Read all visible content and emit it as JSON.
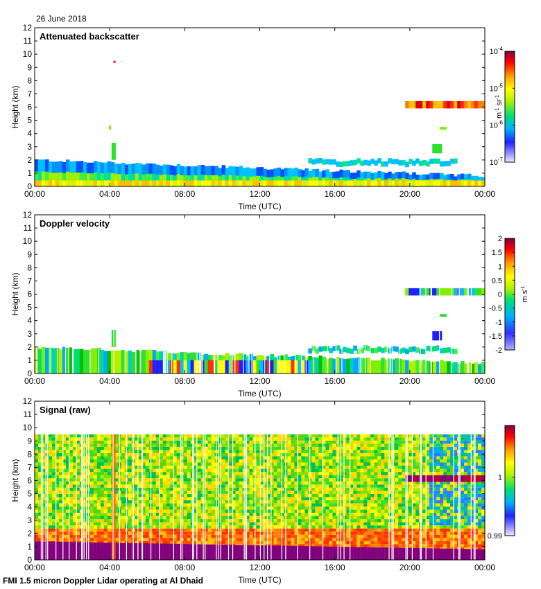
{
  "date_label": "26 June 2018",
  "footer": "FMI 1.5 micron Doppler Lidar operating at Al Dhaid",
  "chart_data": [
    {
      "type": "heatmap",
      "title": "Attenuated backscatter",
      "xlabel": "Time (UTC)",
      "ylabel": "Height (km)",
      "x_ticks": [
        "00:00",
        "04:00",
        "08:00",
        "12:00",
        "16:00",
        "20:00",
        "00:00"
      ],
      "y_ticks": [
        "0",
        "1",
        "2",
        "3",
        "4",
        "5",
        "6",
        "7",
        "8",
        "9",
        "10",
        "11",
        "12"
      ],
      "ylim": [
        0,
        12
      ],
      "xlim_hours": [
        0,
        24
      ],
      "colorbar": {
        "unit_html": "m<tspan dy='-4' font-size='7'>-1</tspan><tspan dy='4'> sr</tspan><tspan dy='-4' font-size='7'>-1</tspan>",
        "unit": "m-1 sr-1",
        "scale": "log",
        "range": [
          1e-07,
          0.0001
        ],
        "tick_labels": [
          {
            "base": "10",
            "exp": "-4"
          },
          {
            "base": "10",
            "exp": "-5"
          },
          {
            "base": "10",
            "exp": "-6"
          },
          {
            "base": "10",
            "exp": "-7"
          }
        ]
      },
      "features": [
        {
          "name": "boundary-layer",
          "t_start": 0,
          "t_end": 24,
          "top_km_start": 2.0,
          "top_km_end": 0.8
        },
        {
          "name": "cirrus-layer",
          "t_start": 19.8,
          "t_end": 24,
          "base_km": 5.9,
          "top_km": 6.5,
          "intensity": "high"
        },
        {
          "name": "plume",
          "t_start": 4.0,
          "t_end": 4.5,
          "base_km": 2.0,
          "top_km": 3.3
        }
      ]
    },
    {
      "type": "heatmap",
      "title": "Doppler velocity",
      "xlabel": "Time (UTC)",
      "ylabel": "Height (km)",
      "x_ticks": [
        "00:00",
        "04:00",
        "08:00",
        "12:00",
        "16:00",
        "20:00",
        "00:00"
      ],
      "y_ticks": [
        "0",
        "1",
        "2",
        "3",
        "4",
        "5",
        "6",
        "7",
        "8",
        "9",
        "10",
        "11",
        "12"
      ],
      "ylim": [
        0,
        12
      ],
      "xlim_hours": [
        0,
        24
      ],
      "colorbar": {
        "unit": "m s-1",
        "scale": "linear",
        "range": [
          -2,
          2
        ],
        "tick_labels": [
          "2",
          "1.5",
          "1",
          "0.5",
          "0",
          "-0.5",
          "-1",
          "-1.5",
          "-2"
        ]
      }
    },
    {
      "type": "heatmap",
      "title": "Signal (raw)",
      "xlabel": "Time (UTC)",
      "ylabel": "Height (km)",
      "x_ticks": [
        "00:00",
        "04:00",
        "08:00",
        "12:00",
        "16:00",
        "20:00",
        "00:00"
      ],
      "y_ticks": [
        "0",
        "1",
        "2",
        "3",
        "4",
        "5",
        "6",
        "7",
        "8",
        "9",
        "10",
        "11",
        "12"
      ],
      "ylim": [
        0,
        12
      ],
      "xlim_hours": [
        0,
        24
      ],
      "colorbar": {
        "unit": "",
        "scale": "linear",
        "range": [
          0.99,
          1.01
        ],
        "tick_labels": [
          "1",
          "0.99"
        ]
      }
    }
  ],
  "colors": {
    "frame": "#000000",
    "background": "#ffffff"
  }
}
